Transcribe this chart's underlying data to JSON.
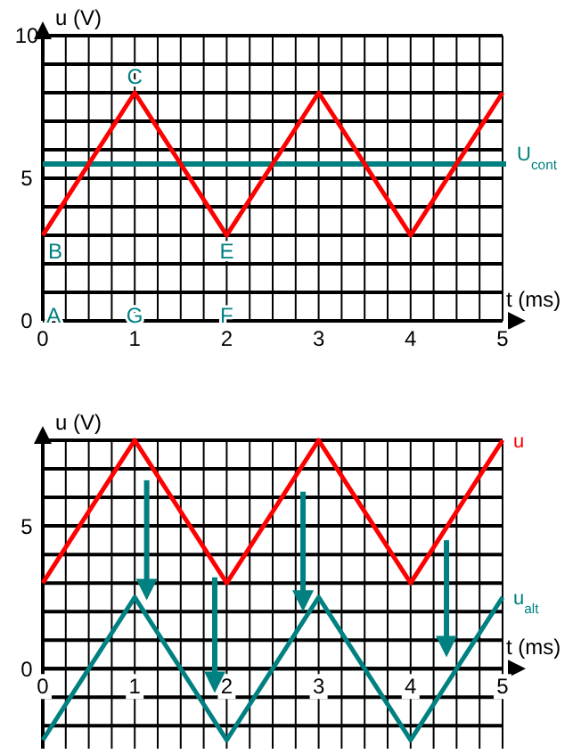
{
  "chart_data": [
    {
      "type": "line",
      "xlabel": "t (ms)",
      "ylabel": "u (V)",
      "x": [
        0,
        1,
        2,
        3,
        4,
        5
      ],
      "series": [
        {
          "color": "#ff0000",
          "values": [
            3,
            8,
            3,
            8,
            3,
            8
          ]
        }
      ],
      "xlim": [
        0,
        5
      ],
      "ylim": [
        0,
        10
      ],
      "xticks": [
        0,
        {
          "value": 0.25,
          "label": null
        },
        {
          "value": 0.5,
          "label": null
        },
        {
          "value": 0.75,
          "label": null
        },
        1,
        {
          "value": 1.25,
          "label": null
        },
        {
          "value": 1.5,
          "label": null
        },
        {
          "value": 1.75,
          "label": null
        },
        2,
        {
          "value": 2.25,
          "label": null
        },
        {
          "value": 2.5,
          "label": null
        },
        {
          "value": 2.75,
          "label": null
        },
        3,
        {
          "value": 3.25,
          "label": null
        },
        {
          "value": 3.5,
          "label": null
        },
        {
          "value": 3.75,
          "label": null
        },
        4,
        {
          "value": 4.25,
          "label": null
        },
        {
          "value": 4.5,
          "label": null
        },
        {
          "value": 4.75,
          "label": null
        },
        5
      ],
      "yticks": [
        0,
        {
          "value": 1,
          "label": null
        },
        {
          "value": 2,
          "label": null
        },
        {
          "value": 3,
          "label": null
        },
        {
          "value": 4,
          "label": null
        },
        5,
        {
          "value": 6,
          "label": null
        },
        {
          "value": 7,
          "label": null
        },
        {
          "value": 8,
          "label": null
        },
        {
          "value": 9,
          "label": null
        },
        10
      ],
      "grid": true,
      "ref_lines": [
        {
          "axis": "y",
          "value": 5.5,
          "label": "U$_{cont}$",
          "color": "#008080"
        }
      ],
      "annotations": [
        "A",
        {
          "text": "B",
          "x": 0,
          "y": 3
        },
        {
          "text": "C",
          "x": 1,
          "y": 8
        },
        {
          "text": "E",
          "x": 2,
          "y": 3
        },
        "F",
        "G"
      ]
    },
    {
      "type": "line",
      "xlabel": "t (ms)",
      "ylabel": "u (V)",
      "x": [
        0,
        1,
        2,
        3,
        4,
        5
      ],
      "series": [
        {
          "name": "u",
          "color": "#ff0000",
          "values": [
            3,
            8,
            3,
            8,
            3,
            8
          ]
        },
        {
          "name": "u$_{alt}$",
          "color": "#008080",
          "values": [
            -2.5,
            2.5,
            -2.5,
            2.5,
            -2.5,
            2.5
          ]
        }
      ],
      "xlim": [
        0,
        5
      ],
      "ylim": [
        -2.8,
        8
      ],
      "xticks": [
        0,
        {
          "value": 0.25,
          "label": null
        },
        {
          "value": 0.5,
          "label": null
        },
        {
          "value": 0.75,
          "label": null
        },
        1,
        {
          "value": 1.25,
          "label": null
        },
        {
          "value": 1.5,
          "label": null
        },
        {
          "value": 1.75,
          "label": null
        },
        2,
        {
          "value": 2.25,
          "label": null
        },
        {
          "value": 2.5,
          "label": null
        },
        {
          "value": 2.75,
          "label": null
        },
        3,
        {
          "value": 3.25,
          "label": null
        },
        {
          "value": 3.5,
          "label": null
        },
        {
          "value": 3.75,
          "label": null
        },
        4,
        {
          "value": 4.25,
          "label": null
        },
        {
          "value": 4.5,
          "label": null
        },
        {
          "value": 4.75,
          "label": null
        },
        5
      ],
      "yticks": [
        {
          "value": -2,
          "label": null
        },
        {
          "value": -1,
          "label": null
        },
        0,
        {
          "value": 1,
          "label": null
        },
        {
          "value": 2,
          "label": null
        },
        {
          "value": 3,
          "label": null
        },
        {
          "value": 4,
          "label": null
        },
        5,
        {
          "value": 6,
          "label": null
        },
        {
          "value": 7,
          "label": null
        },
        {
          "value": 8,
          "label": null
        }
      ],
      "grid": true
    }
  ]
}
